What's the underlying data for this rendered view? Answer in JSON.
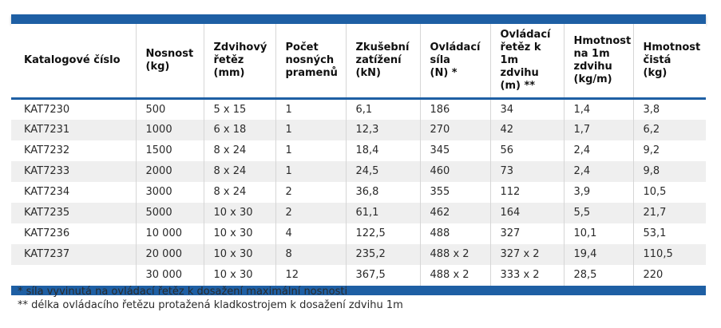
{
  "table": {
    "columns": [
      "Katalogové číslo",
      "Nosnost\n(kg)",
      "Zdvihový\nřetěz\n(mm)",
      "Počet\nnosných\npramenů",
      "Zkušební\nzatížení\n(kN)",
      "Ovládací\nsíla\n(N) *",
      "Ovládací\nřetěz k\n1m zdvihu\n(m) **",
      "Hmotnost\nna 1m\nzdvihu\n(kg/m)",
      "Hmotnost\nčistá\n(kg)"
    ],
    "rows": [
      [
        "KAT7230",
        "500",
        "5 x 15",
        "1",
        "6,1",
        "186",
        "34",
        "1,4",
        "3,8"
      ],
      [
        "KAT7231",
        "1000",
        "6 x 18",
        "1",
        "12,3",
        "270",
        "42",
        "1,7",
        "6,2"
      ],
      [
        "KAT7232",
        "1500",
        "8 x 24",
        "1",
        "18,4",
        "345",
        "56",
        "2,4",
        "9,2"
      ],
      [
        "KAT7233",
        "2000",
        "8 x 24",
        "1",
        "24,5",
        "460",
        "73",
        "2,4",
        "9,8"
      ],
      [
        "KAT7234",
        "3000",
        "8 x 24",
        "2",
        "36,8",
        "355",
        "112",
        "3,9",
        "10,5"
      ],
      [
        "KAT7235",
        "5000",
        "10 x 30",
        "2",
        "61,1",
        "462",
        "164",
        "5,5",
        "21,7"
      ],
      [
        "KAT7236",
        "10 000",
        "10 x 30",
        "4",
        "122,5",
        "488",
        "327",
        "10,1",
        "53,1"
      ],
      [
        "KAT7237",
        "20 000",
        "10 x 30",
        "8",
        "235,2",
        "488 x 2",
        "327 x 2",
        "19,4",
        "110,5"
      ],
      [
        "",
        "30 000",
        "10 x 30",
        "12",
        "367,5",
        "488 x 2",
        "333 x 2",
        "28,5",
        "220"
      ]
    ]
  },
  "footnotes": [
    "* síla vyvinutá na ovládací řetěz k dosažení maximální nosnosti",
    "** délka ovládacího řetězu protažená kladkostrojem k dosažení zdvihu 1m"
  ],
  "colors": {
    "accent": "#1e5fa4",
    "stripe": "#efefef",
    "separator": "#d6d6d6",
    "header_text": "#101010",
    "body_text": "#2a2a2a"
  }
}
